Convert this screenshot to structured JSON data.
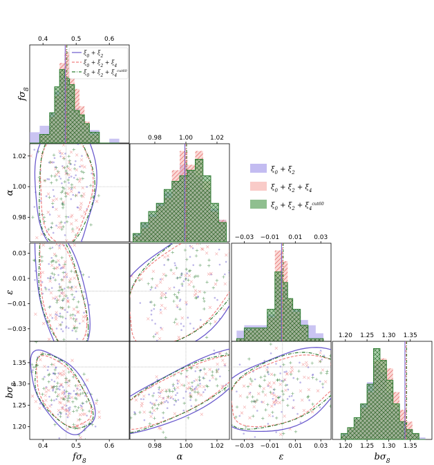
{
  "chart_data": {
    "type": "scatter",
    "params": [
      {
        "name": "fσ8",
        "sym": "f",
        "sub": "σ",
        "subidx": "8",
        "range": [
          0.36,
          0.66
        ],
        "ticks": [
          0.4,
          0.5,
          0.6
        ],
        "ticklabels": [
          "0.4",
          "0.5",
          "0.6"
        ],
        "truth": 0.47
      },
      {
        "name": "α",
        "sym": "α",
        "range": [
          0.964,
          1.028
        ],
        "ticks": [
          0.98,
          1.0,
          1.02
        ],
        "ticklabels": [
          "0.98",
          "1.00",
          "1.02"
        ],
        "truth": 1.0
      },
      {
        "name": "ε",
        "sym": "ε",
        "range": [
          -0.04,
          0.038
        ],
        "ticks": [
          -0.03,
          -0.01,
          0.01,
          0.03
        ],
        "ticklabels": [
          "−0.03",
          "−0.01",
          "0.01",
          "0.03"
        ],
        "truth": 0.0
      },
      {
        "name": "bσ8",
        "sym": "b",
        "sub": "σ",
        "subidx": "8",
        "range": [
          1.17,
          1.4
        ],
        "ticks": [
          1.2,
          1.25,
          1.3,
          1.35
        ],
        "ticklabels": [
          "1.20",
          "1.25",
          "1.30",
          "1.35"
        ],
        "ticklabels_x": [
          "1.20",
          "1.25",
          "1.30",
          "1.35"
        ],
        "truth": 1.34
      }
    ],
    "series": [
      {
        "name": "ξ0 + ξ2",
        "legend_main": "ξ",
        "color": "#6a5acd",
        "fill": "#b8b0ee",
        "linestyle": "solid",
        "marker": "dot"
      },
      {
        "name": "ξ0 + ξ2 + ξ4",
        "legend_main": "ξ",
        "color": "#f08080",
        "fill": "#f7b9b5",
        "linestyle": "dashed",
        "marker": "x"
      },
      {
        "name": "ξ0 + ξ2 + ξ4cut60",
        "legend_main": "ξ",
        "color": "#2e7d32",
        "fill": "#6aaa6a",
        "linestyle": "dashdot",
        "marker": "plus"
      }
    ],
    "legend": {
      "small_labels": [
        {
          "a": "ξ",
          "s1": "0",
          "b": " + ξ",
          "s2": "2",
          "c": "",
          "s3": "",
          "sup": ""
        },
        {
          "a": "ξ",
          "s1": "0",
          "b": " + ξ",
          "s2": "2",
          "c": " + ξ",
          "s3": "4",
          "sup": ""
        },
        {
          "a": "ξ",
          "s1": "0",
          "b": " + ξ",
          "s2": "2",
          "c": " + ξ",
          "s3": "4",
          "sup": "cut60"
        }
      ],
      "placement": "top-right (inside fσ8 panel) and right of α/ε panels"
    },
    "histograms": {
      "fσ8": {
        "edges": [
          0.36,
          0.39,
          0.42,
          0.435,
          0.45,
          0.465,
          0.48,
          0.495,
          0.51,
          0.525,
          0.54,
          0.57,
          0.6,
          0.63
        ],
        "s0": [
          5,
          8,
          14,
          24,
          31,
          30,
          25,
          16,
          12,
          8,
          6,
          0,
          2
        ],
        "s1": [
          0,
          4,
          12,
          22,
          37,
          42,
          30,
          25,
          17,
          10,
          4,
          0,
          0
        ],
        "s2": [
          0,
          4,
          14,
          26,
          34,
          30,
          27,
          15,
          13,
          9,
          5,
          0,
          0
        ]
      },
      "α": {
        "edges": [
          0.966,
          0.971,
          0.976,
          0.981,
          0.986,
          0.991,
          0.996,
          1.001,
          1.006,
          1.011,
          1.016,
          1.021,
          1.026
        ],
        "s0": [
          3,
          7,
          10,
          14,
          18,
          22,
          28,
          26,
          24,
          19,
          12,
          8
        ],
        "s1": [
          2,
          5,
          9,
          13,
          16,
          26,
          33,
          28,
          33,
          22,
          11,
          8
        ],
        "s2": [
          3,
          7,
          11,
          14,
          19,
          22,
          24,
          26,
          30,
          24,
          14,
          7
        ]
      },
      "ε": {
        "edges": [
          -0.036,
          -0.03,
          -0.024,
          -0.018,
          -0.012,
          -0.006,
          0.0,
          0.004,
          0.008,
          0.014,
          0.02,
          0.026,
          0.032
        ],
        "s0": [
          4,
          6,
          6,
          6,
          10,
          24,
          20,
          14,
          12,
          8,
          6,
          3
        ],
        "s1": [
          1,
          4,
          5,
          5,
          9,
          34,
          30,
          16,
          11,
          6,
          1,
          1
        ],
        "s2": [
          1,
          5,
          5,
          5,
          12,
          26,
          22,
          16,
          12,
          6,
          1,
          1
        ]
      },
      "bσ8": {
        "edges": [
          1.19,
          1.205,
          1.22,
          1.235,
          1.25,
          1.265,
          1.28,
          1.295,
          1.31,
          1.325,
          1.34,
          1.355,
          1.37,
          1.385
        ],
        "s0": [
          3,
          5,
          10,
          18,
          29,
          38,
          34,
          24,
          16,
          9,
          5,
          3,
          1
        ],
        "s1": [
          2,
          6,
          10,
          16,
          24,
          40,
          41,
          36,
          24,
          15,
          9,
          3,
          0
        ],
        "s2": [
          3,
          6,
          11,
          18,
          28,
          46,
          40,
          30,
          18,
          9,
          5,
          3,
          0
        ]
      }
    },
    "contours": {
      "α-fσ8": {
        "cx": 0.467,
        "cy": 1.0,
        "sx": 0.045,
        "sy": 0.021,
        "rho": 0.05
      },
      "ε-fσ8": {
        "cx": 0.457,
        "cy": -0.002,
        "sx": 0.04,
        "sy": 0.027,
        "rho": -0.5
      },
      "bσ8-fσ8": {
        "cx": 0.458,
        "cy": 1.28,
        "sx": 0.047,
        "sy": 0.047,
        "rho": -0.55
      },
      "ε-α": {
        "cx": 1.0,
        "cy": 0.003,
        "sx": 0.022,
        "sy": 0.026,
        "rho": 0.55
      },
      "bσ8-α": {
        "cx": 0.998,
        "cy": 1.283,
        "sx": 0.024,
        "sy": 0.05,
        "rho": 0.82
      },
      "bσ8-ε": {
        "cx": 0.001,
        "cy": 1.286,
        "sx": 0.025,
        "sy": 0.048,
        "rho": 0.45
      }
    }
  }
}
